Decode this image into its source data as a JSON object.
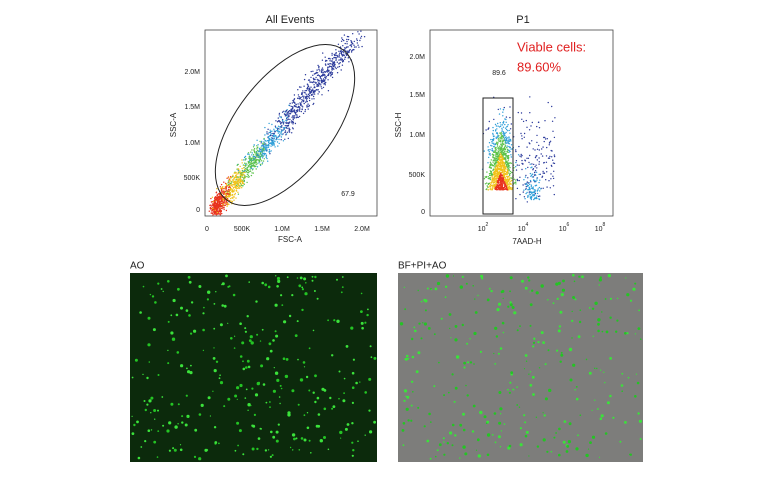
{
  "plots": [
    {
      "title": "All Events",
      "y_label": "SSC-A",
      "x_label": "FSC-A",
      "y_ticks": [
        "0",
        "500K",
        "1.0M",
        "1.5M",
        "2.0M"
      ],
      "x_ticks": [
        "0",
        "500K",
        "1.0M",
        "1.5M",
        "2.0M"
      ],
      "gate_value": "67.9"
    },
    {
      "title": "P1",
      "y_label": "SSC-H",
      "x_label": "7AAD-H",
      "y_ticks": [
        "0",
        "500K",
        "1.0M",
        "1.5M",
        "2.0M"
      ],
      "x_ticks": [
        {
          "base": "10",
          "exp": "2"
        },
        {
          "base": "10",
          "exp": "4"
        },
        {
          "base": "10",
          "exp": "6"
        },
        {
          "base": "10",
          "exp": "8"
        }
      ],
      "gate_value": "89.6",
      "annotation": [
        "Viable cells:",
        "89.60%"
      ]
    }
  ],
  "images": [
    {
      "label": "AO"
    },
    {
      "label": "BF+PI+AO"
    }
  ]
}
